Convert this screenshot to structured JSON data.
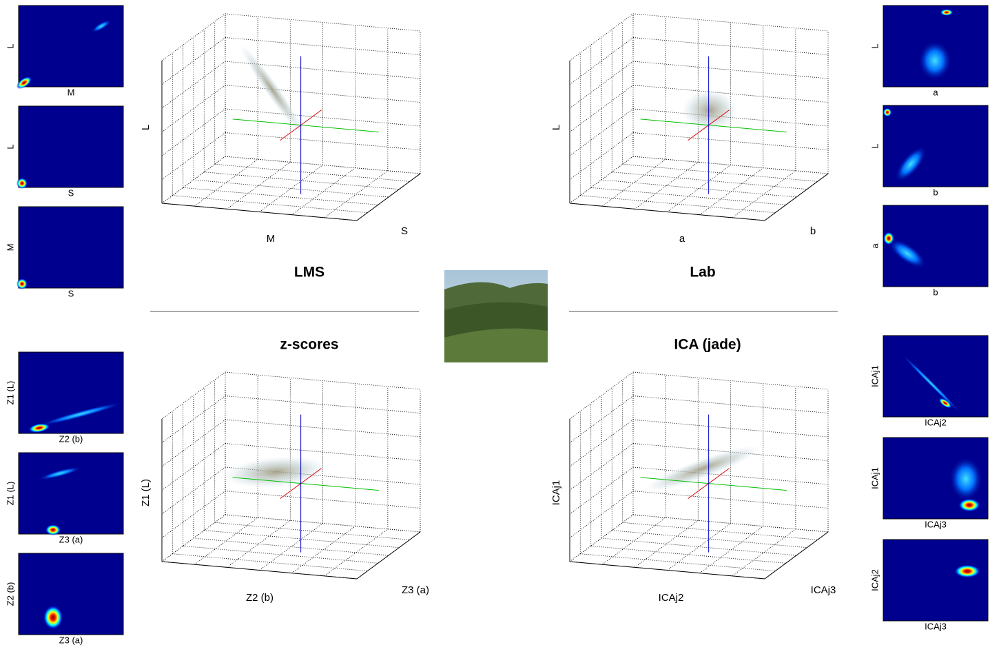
{
  "panels": [
    {
      "title": "LMS",
      "axes": {
        "x": "M",
        "y": "S",
        "z": "L"
      },
      "projections": [
        {
          "y": "L",
          "x": "M"
        },
        {
          "y": "L",
          "x": "S"
        },
        {
          "y": "M",
          "x": "S"
        }
      ]
    },
    {
      "title": "Lab",
      "axes": {
        "x": "a",
        "y": "b",
        "z": "L"
      },
      "projections": [
        {
          "y": "L",
          "x": "a"
        },
        {
          "y": "L",
          "x": "b"
        },
        {
          "y": "a",
          "x": "b"
        }
      ]
    },
    {
      "title": "z-scores",
      "axes": {
        "x": "Z2 (b)",
        "y": "Z3 (a)",
        "z": "Z1 (L)"
      },
      "projections": [
        {
          "y": "Z1 (L)",
          "x": "Z2 (b)"
        },
        {
          "y": "Z1 (L)",
          "x": "Z3 (a)"
        },
        {
          "y": "Z2 (b)",
          "x": "Z3 (a)"
        }
      ]
    },
    {
      "title": "ICA (jade)",
      "axes": {
        "x": "ICAj2",
        "y": "ICAj3",
        "z": "ICAj1"
      },
      "projections": [
        {
          "y": "ICAj1",
          "x": "ICAj2"
        },
        {
          "y": "ICAj1",
          "x": "ICAj3"
        },
        {
          "y": "ICAj2",
          "x": "ICAj3"
        }
      ]
    }
  ]
}
